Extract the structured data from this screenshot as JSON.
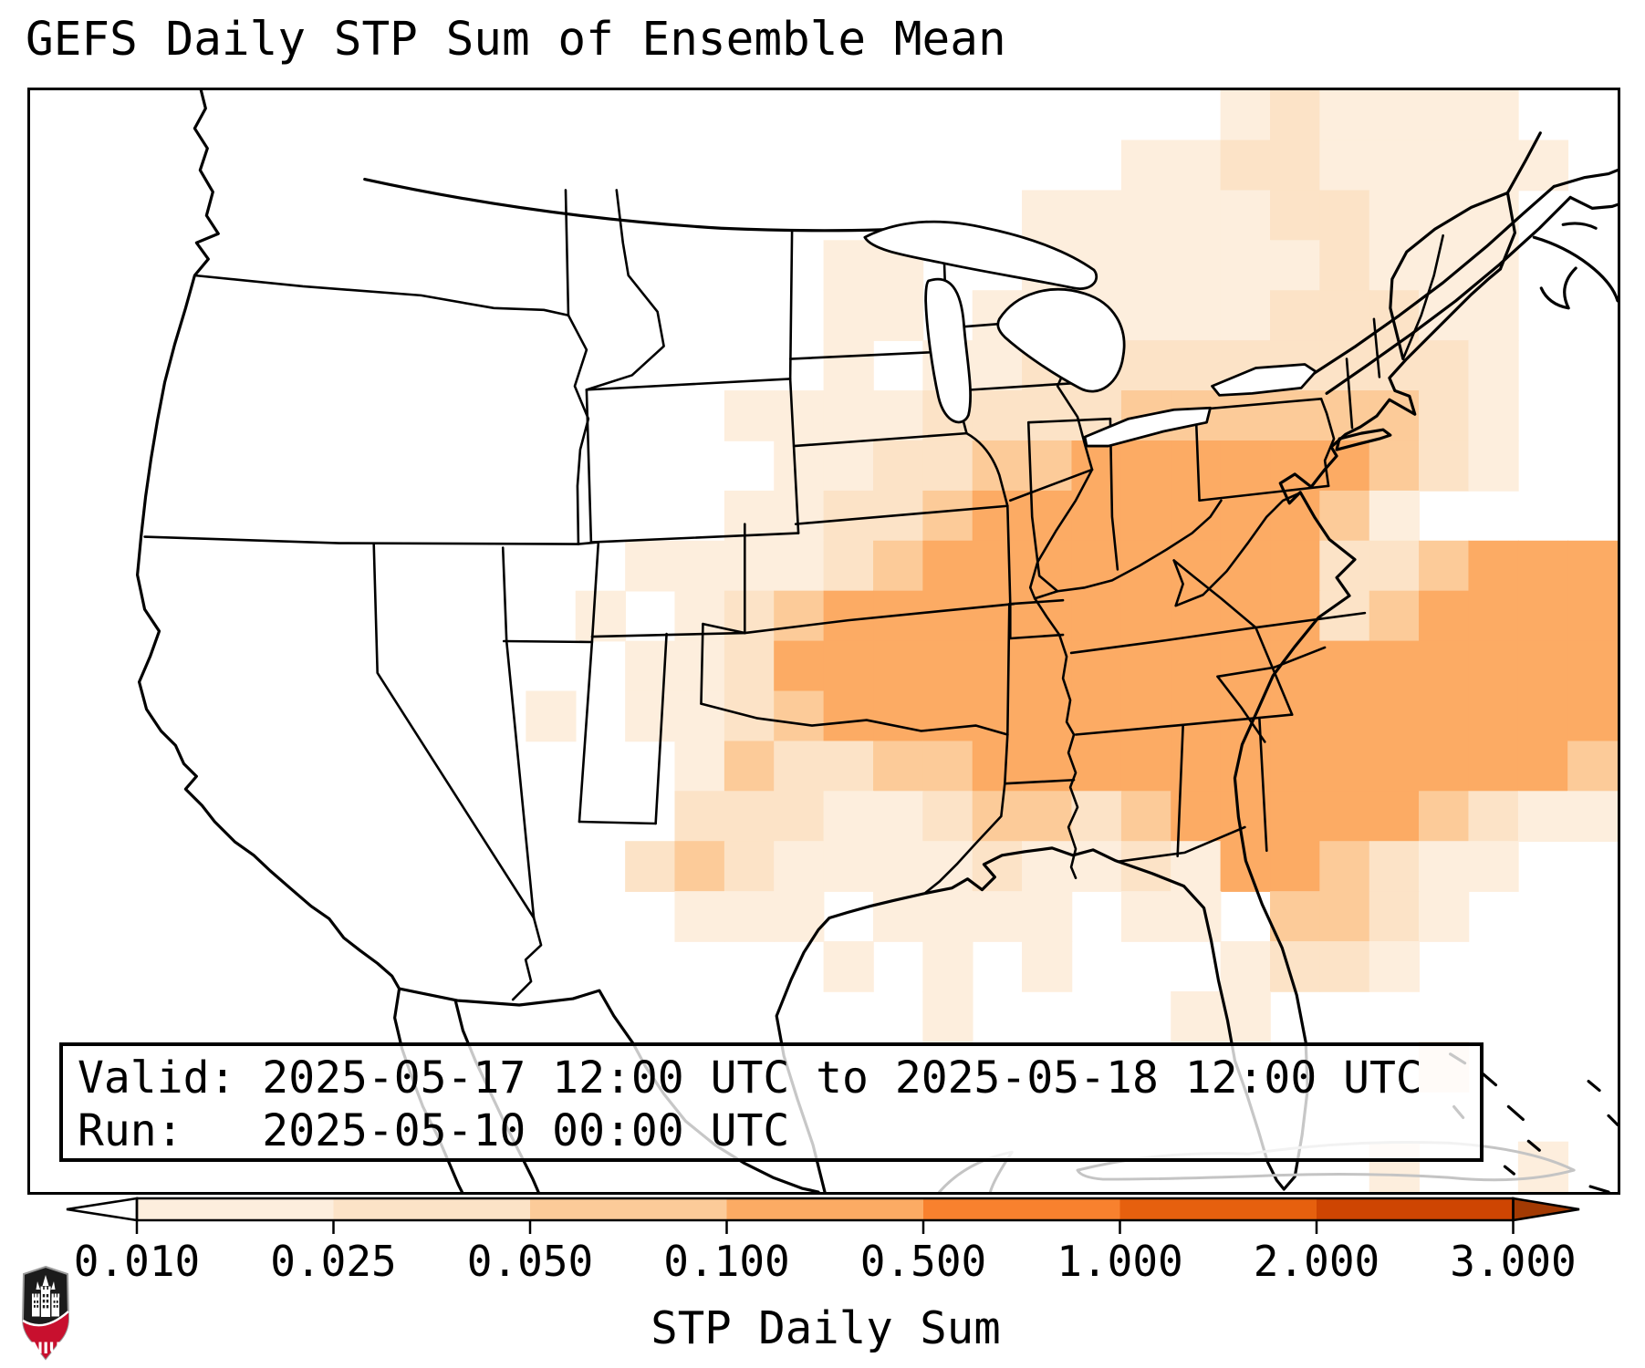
{
  "title": "GEFS Daily STP Sum of Ensemble Mean",
  "info_box": {
    "valid_line": "Valid: 2025-05-17 12:00 UTC to 2025-05-18 12:00 UTC",
    "run_line": "Run:   2025-05-10 00:00 UTC"
  },
  "colorbar": {
    "label": "STP Daily Sum",
    "tick_labels": [
      "0.010",
      "0.025",
      "0.050",
      "0.100",
      "0.500",
      "1.000",
      "2.000",
      "3.000"
    ],
    "segment_colors": [
      "#fdeedd",
      "#fce3c7",
      "#fccb99",
      "#fcab64",
      "#f8812e",
      "#e6600e",
      "#ce4502"
    ],
    "under_arrow_color": "#ffffff",
    "over_arrow_color": "#a33a03",
    "outline_color": "#000000"
  },
  "logo": {
    "text": "NIU",
    "shield_black": "#1b1b1b",
    "shield_red": "#c8102e"
  },
  "map": {
    "land_color": "#ffffff",
    "border_color": "#000000",
    "minor_coast_color": "#c4c4c4"
  },
  "chart_data": {
    "type": "heatmap",
    "title": "GEFS Daily STP Sum of Ensemble Mean",
    "variable": "STP Daily Sum",
    "valid": "2025-05-17 12:00 UTC to 2025-05-18 12:00 UTC",
    "run": "2025-05-10 00:00 UTC",
    "bin_edges": [
      0.01,
      0.025,
      0.05,
      0.1,
      0.5,
      1.0,
      2.0,
      3.0
    ],
    "legend_position": "bottom",
    "cell_levels": [
      "0",
      "0.010-0.025",
      "0.025-0.050",
      "0.050-0.100",
      "0.100-0.500"
    ],
    "cell_colors": [
      "#ffffff",
      "#fdeedd",
      "#fce3c7",
      "#fccb99",
      "#fcab64"
    ],
    "grid_cols": 32,
    "grid_rows": [
      "00000000000000000000000012111100",
      "00000000000000000000001122111110",
      "00000000000000000000111112211100",
      "00000000000000001100111111211100",
      "00000000000000001101111112221100",
      "00000000000000001011222222222100",
      "00000000000000111122223333332100",
      "00000000000000011223344444432100",
      "00000000000000112234444444310000",
      "00000000000011112344444444223444",
      "00000000000101234444444444234444",
      "00000000000011244444444444444444",
      "00000000001011234444444444444444",
      "00000000000001322334444444444443",
      "00000000000002221123323444443211",
      "00000000000023211112112144321100",
      "00000000000001110111101103321000",
      "00000000000000001010100012210000",
      "00000000000000000010000110000000",
      "00000000000000000000000000001000",
      "00000000000000000000000000000000",
      "00000000000000000000000000010010"
    ]
  }
}
